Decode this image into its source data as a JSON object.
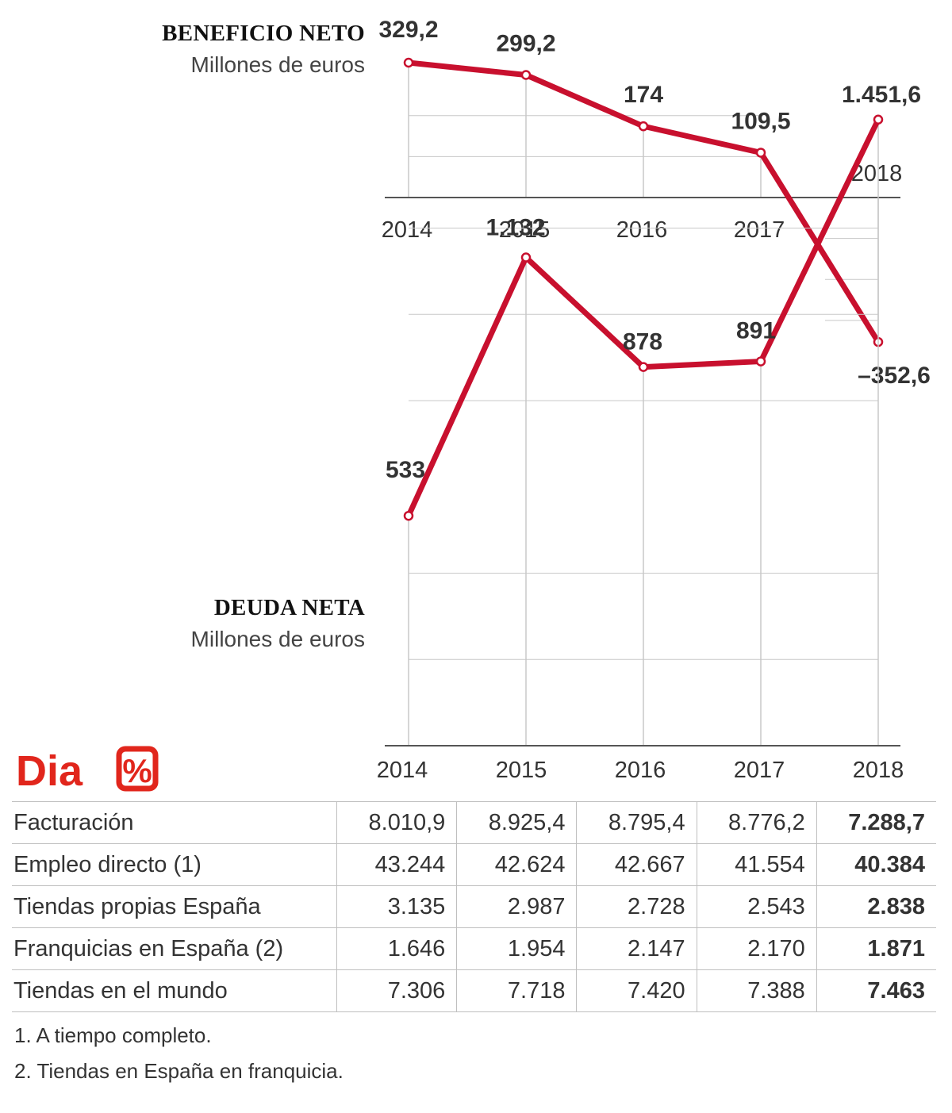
{
  "chart_data": [
    {
      "type": "line",
      "title": "BENEFICIO NETO",
      "subtitle": "Millones de euros",
      "categories": [
        "2014",
        "2015",
        "2016",
        "2017",
        "2018"
      ],
      "values": [
        329.2,
        299.2,
        174,
        109.5,
        -352.6
      ],
      "value_labels": [
        "329,2",
        "299,2",
        "174",
        "109,5",
        "–352,6"
      ],
      "ylim": [
        -400,
        400
      ],
      "color": "#c8102e"
    },
    {
      "type": "line",
      "title": "DEUDA NETA",
      "subtitle": "Millones de euros",
      "categories": [
        "2014",
        "2015",
        "2016",
        "2017",
        "2018"
      ],
      "values": [
        533,
        1132,
        878,
        891,
        1451.6
      ],
      "value_labels": [
        "533",
        "1.132",
        "878",
        "891",
        "1.451,6"
      ],
      "ylim": [
        0,
        1600
      ],
      "color": "#c8102e"
    },
    {
      "type": "table",
      "columns": [
        "2014",
        "2015",
        "2016",
        "2017",
        "2018"
      ],
      "rows": [
        {
          "label": "Facturación",
          "values": [
            "8.010,9",
            "8.925,4",
            "8.795,4",
            "8.776,2",
            "7.288,7"
          ]
        },
        {
          "label": "Empleo directo  (1)",
          "values": [
            "43.244",
            "42.624",
            "42.667",
            "41.554",
            "40.384"
          ]
        },
        {
          "label": "Tiendas propias España",
          "values": [
            "3.135",
            "2.987",
            "2.728",
            "2.543",
            "2.838"
          ]
        },
        {
          "label": "Franquicias en  España (2)",
          "values": [
            "1.646",
            "1.954",
            "2.147",
            "2.170",
            "1.871"
          ]
        },
        {
          "label": "Tiendas en el mundo",
          "values": [
            "7.306",
            "7.718",
            "7.420",
            "7.388",
            "7.463"
          ]
        }
      ]
    }
  ],
  "logo": {
    "text": "Dia",
    "symbol": "%",
    "color": "#e1261c"
  },
  "notes": [
    "1. A tiempo completo.",
    "2. Tiendas en España en franquicia."
  ]
}
